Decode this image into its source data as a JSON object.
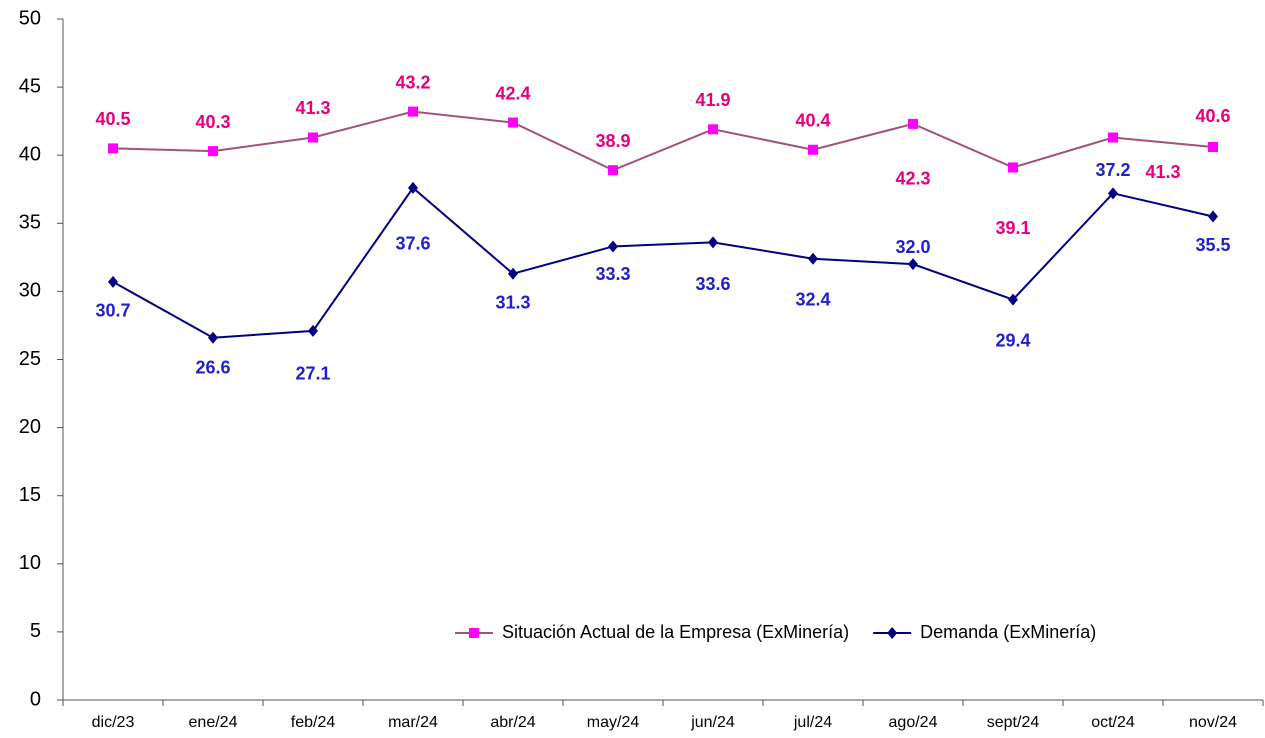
{
  "chart_data": {
    "type": "line",
    "categories": [
      "dic/23",
      "ene/24",
      "feb/24",
      "mar/24",
      "abr/24",
      "may/24",
      "jun/24",
      "jul/24",
      "ago/24",
      "sept/24",
      "oct/24",
      "nov/24"
    ],
    "series": [
      {
        "name": "Situación Actual de la Empresa (ExMinería)",
        "color": "#a0527a",
        "marker_color": "#ff00ff",
        "label_color": "#e6007e",
        "marker": "square",
        "values": [
          40.5,
          40.3,
          41.3,
          43.2,
          42.4,
          38.9,
          41.9,
          40.4,
          42.3,
          39.1,
          41.3,
          40.6
        ]
      },
      {
        "name": "Demanda (ExMinería)",
        "color": "#000080",
        "marker_color": "#000080",
        "label_color": "#1f1fcf",
        "marker": "diamond",
        "values": [
          30.7,
          26.6,
          27.1,
          37.6,
          31.3,
          33.3,
          33.6,
          32.4,
          32.0,
          29.4,
          37.2,
          35.5
        ],
        "value_labels": [
          "30.7",
          "26.6",
          "27.1",
          "37.6",
          "31.3",
          "33.3",
          "33.6",
          "32.4",
          "32.0",
          "29.4",
          "37.2",
          "35.5"
        ]
      }
    ],
    "ylim": [
      0,
      50
    ],
    "yticks": [
      0,
      5,
      10,
      15,
      20,
      25,
      30,
      35,
      40,
      45,
      50
    ],
    "grid": false,
    "legend": "bottom-right"
  }
}
